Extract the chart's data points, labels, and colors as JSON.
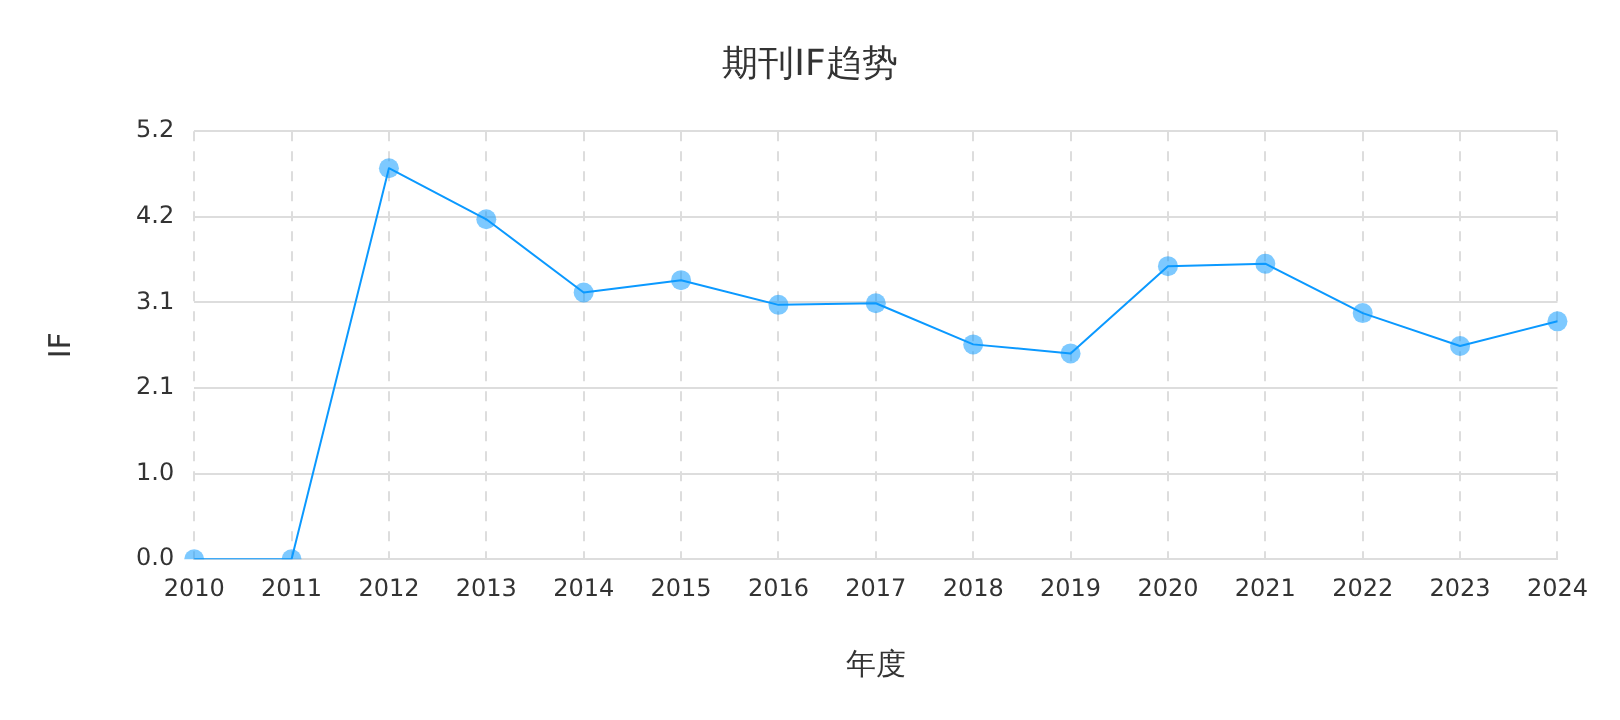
{
  "chart_data": {
    "type": "line",
    "title": "期刊IF趋势",
    "xlabel": "年度",
    "ylabel": "IF",
    "categories": [
      "2010",
      "2011",
      "2012",
      "2013",
      "2014",
      "2015",
      "2016",
      "2017",
      "2018",
      "2019",
      "2020",
      "2021",
      "2022",
      "2023",
      "2024"
    ],
    "series": [
      {
        "color": "#0b99ff",
        "values": [
          0,
          0,
          4.75,
          4.13,
          3.24,
          3.39,
          3.09,
          3.11,
          2.61,
          2.5,
          3.56,
          3.59,
          2.99,
          2.59,
          2.89
        ]
      }
    ],
    "ylim": [
      0,
      5.2
    ],
    "yticks": [
      {
        "value": 0,
        "label": "0.0"
      },
      {
        "value": 1.04,
        "label": "1.0"
      },
      {
        "value": 2.08,
        "label": "2.1"
      },
      {
        "value": 3.12,
        "label": "3.1"
      },
      {
        "value": 4.16,
        "label": "4.2"
      },
      {
        "value": 5.2,
        "label": "5.2"
      }
    ],
    "grid": true,
    "marker": "circle",
    "line_style": "solid",
    "legend": false
  }
}
